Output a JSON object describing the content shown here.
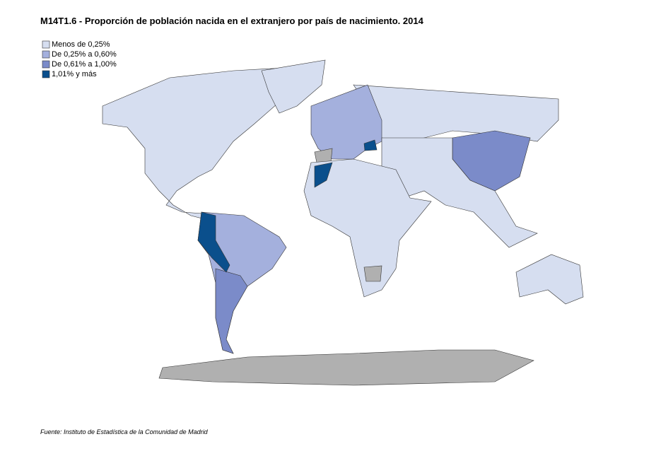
{
  "title": "M14T1.6 - Proporción de población nacida en el extranjero por país de nacimiento. 2014",
  "legend": [
    {
      "label": "Menos de 0,25%",
      "color": "#d6def0"
    },
    {
      "label": "De 0,25% a 0,60%",
      "color": "#a4b0dd"
    },
    {
      "label": "De 0,61% a 1,00%",
      "color": "#7b8bc9"
    },
    {
      "label": "1,01%  y más",
      "color": "#0a4f8c"
    }
  ],
  "source": "Fuente: Instituto de Estadística de la Comunidad de Madrid"
}
